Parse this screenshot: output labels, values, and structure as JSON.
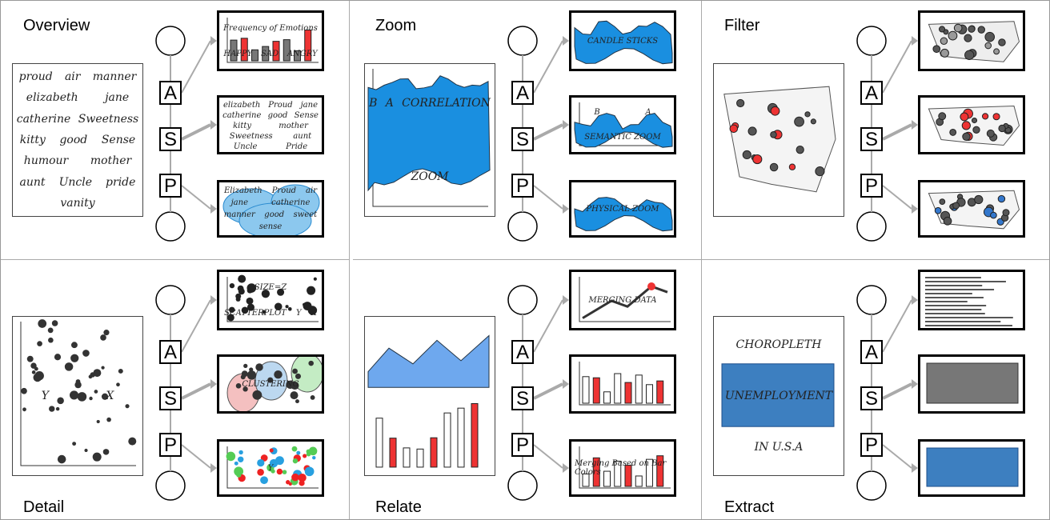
{
  "steps": [
    "A",
    "S",
    "P"
  ],
  "panels": [
    {
      "title": "Overview",
      "sketch": [
        "proud",
        "air",
        "manner",
        "elizabeth",
        "jane",
        "catherine",
        "Sweetness",
        "kitty",
        "good",
        "Sense",
        "humour",
        "mother",
        "aunt",
        "Uncle",
        "pride",
        "vanity"
      ],
      "thumbs": [
        [
          "Frequency of Emotions",
          "HAPPY",
          "SAD",
          "ANGRY"
        ],
        [
          "elizabeth",
          "Proud",
          "jane",
          "catherine",
          "good",
          "Sense",
          "kitty",
          "mother",
          "Sweetness",
          "aunt",
          "Uncle",
          "Pride"
        ],
        [
          "Elizabeth",
          "Proud",
          "air",
          "jane",
          "catherine",
          "manner",
          "good",
          "sweet",
          "sense"
        ]
      ]
    },
    {
      "title": "Zoom",
      "sketch": [
        "B",
        "A",
        "CORRELATION",
        "ZOOM"
      ],
      "thumbs": [
        [
          "CANDLE STICKS"
        ],
        [
          "B",
          "A",
          "SEMANTIC ZOOM"
        ],
        [
          "PHYSICAL ZOOM"
        ]
      ]
    },
    {
      "title": "Filter",
      "sketch": [],
      "thumbs": [
        [],
        [],
        []
      ]
    },
    {
      "title": "Detail",
      "sketch": [
        "Y",
        "X"
      ],
      "thumbs": [
        [
          "SIZE=Z",
          "SCATTERPLOT",
          "Y",
          "X"
        ],
        [
          "CLUSTERING"
        ],
        [
          "Y"
        ]
      ]
    },
    {
      "title": "Relate",
      "sketch": [],
      "thumbs": [
        [
          "MERGING DATA"
        ],
        [],
        [
          "Merging Based on Bar Colors"
        ]
      ]
    },
    {
      "title": "Extract",
      "sketch": [
        "CHOROPLETH",
        "UNEMPLOYMENT",
        "IN U.S.A"
      ],
      "thumbs": [
        [],
        [],
        []
      ]
    }
  ]
}
